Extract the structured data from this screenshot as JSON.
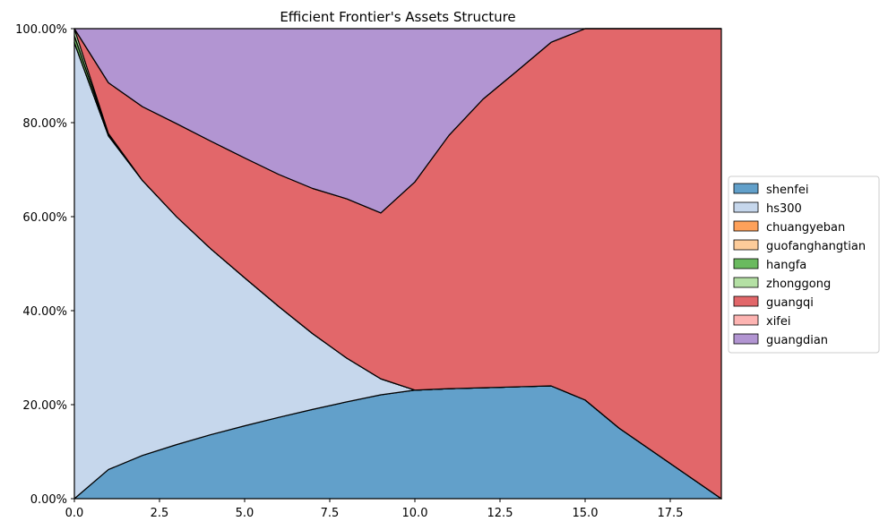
{
  "chart_data": {
    "type": "area",
    "title": "Efficient Frontier's Assets Structure",
    "xlabel": "",
    "ylabel": "",
    "xlim": [
      0,
      19
    ],
    "ylim": [
      0,
      1
    ],
    "grid": true,
    "legend_position": "right",
    "x": [
      0,
      1,
      2,
      3,
      4,
      5,
      6,
      7,
      8,
      9,
      10,
      11,
      12,
      13,
      14,
      15,
      16,
      17,
      18,
      19
    ],
    "x_ticks": [
      0,
      2.5,
      5,
      7.5,
      10,
      12.5,
      15,
      17.5
    ],
    "x_tick_labels": [
      "0.0",
      "2.5",
      "5.0",
      "7.5",
      "10.0",
      "12.5",
      "15.0",
      "17.5"
    ],
    "y_ticks": [
      0,
      0.2,
      0.4,
      0.6,
      0.8,
      1.0
    ],
    "y_tick_labels": [
      "0.00%",
      "20.00%",
      "40.00%",
      "60.00%",
      "80.00%",
      "100.00%"
    ],
    "series": [
      {
        "name": "shenfei",
        "color": "#62a0ca",
        "values": [
          0.0,
          0.062,
          0.092,
          0.115,
          0.136,
          0.155,
          0.173,
          0.19,
          0.206,
          0.221,
          0.231,
          0.234,
          0.236,
          0.238,
          0.24,
          0.21,
          0.15,
          0.1,
          0.05,
          0.0
        ]
      },
      {
        "name": "hs300",
        "color": "#c6d7ec",
        "values": [
          0.97,
          0.71,
          0.585,
          0.485,
          0.396,
          0.315,
          0.236,
          0.161,
          0.093,
          0.034,
          0.0,
          0.0,
          0.0,
          0.0,
          0.0,
          0.0,
          0.0,
          0.0,
          0.0,
          0.0
        ]
      },
      {
        "name": "chuangyeban",
        "color": "#fea15a",
        "values": [
          0,
          0,
          0,
          0,
          0,
          0,
          0,
          0,
          0,
          0,
          0,
          0,
          0,
          0,
          0,
          0,
          0,
          0,
          0,
          0
        ]
      },
      {
        "name": "guofanghangtian",
        "color": "#fdcc9a",
        "values": [
          0,
          0,
          0,
          0,
          0,
          0,
          0,
          0,
          0,
          0,
          0,
          0,
          0,
          0,
          0,
          0,
          0,
          0,
          0,
          0
        ]
      },
      {
        "name": "hangfa",
        "color": "#6aba5f",
        "values": [
          0.015,
          0.003,
          0,
          0,
          0,
          0,
          0,
          0,
          0,
          0,
          0,
          0,
          0,
          0,
          0,
          0,
          0,
          0,
          0,
          0
        ]
      },
      {
        "name": "zhonggong",
        "color": "#b4e0a4",
        "values": [
          0.015,
          0.002,
          0,
          0,
          0,
          0,
          0,
          0,
          0,
          0,
          0,
          0,
          0,
          0,
          0,
          0,
          0,
          0,
          0,
          0
        ]
      },
      {
        "name": "guangqi",
        "color": "#e2676a",
        "values": [
          0.0,
          0.108,
          0.157,
          0.198,
          0.229,
          0.255,
          0.281,
          0.309,
          0.339,
          0.353,
          0.443,
          0.539,
          0.614,
          0.672,
          0.731,
          0.79,
          0.85,
          0.9,
          0.95,
          1.0
        ]
      },
      {
        "name": "xifei",
        "color": "#fdb4b2",
        "values": [
          0,
          0,
          0,
          0,
          0,
          0,
          0,
          0,
          0,
          0,
          0,
          0,
          0,
          0,
          0,
          0,
          0,
          0,
          0,
          0
        ]
      },
      {
        "name": "guangdian",
        "color": "#b295d2",
        "values": [
          0.0,
          0.115,
          0.166,
          0.202,
          0.239,
          0.275,
          0.31,
          0.34,
          0.362,
          0.392,
          0.326,
          0.227,
          0.15,
          0.09,
          0.029,
          0.0,
          0.0,
          0.0,
          0.0,
          0.0
        ]
      }
    ]
  }
}
